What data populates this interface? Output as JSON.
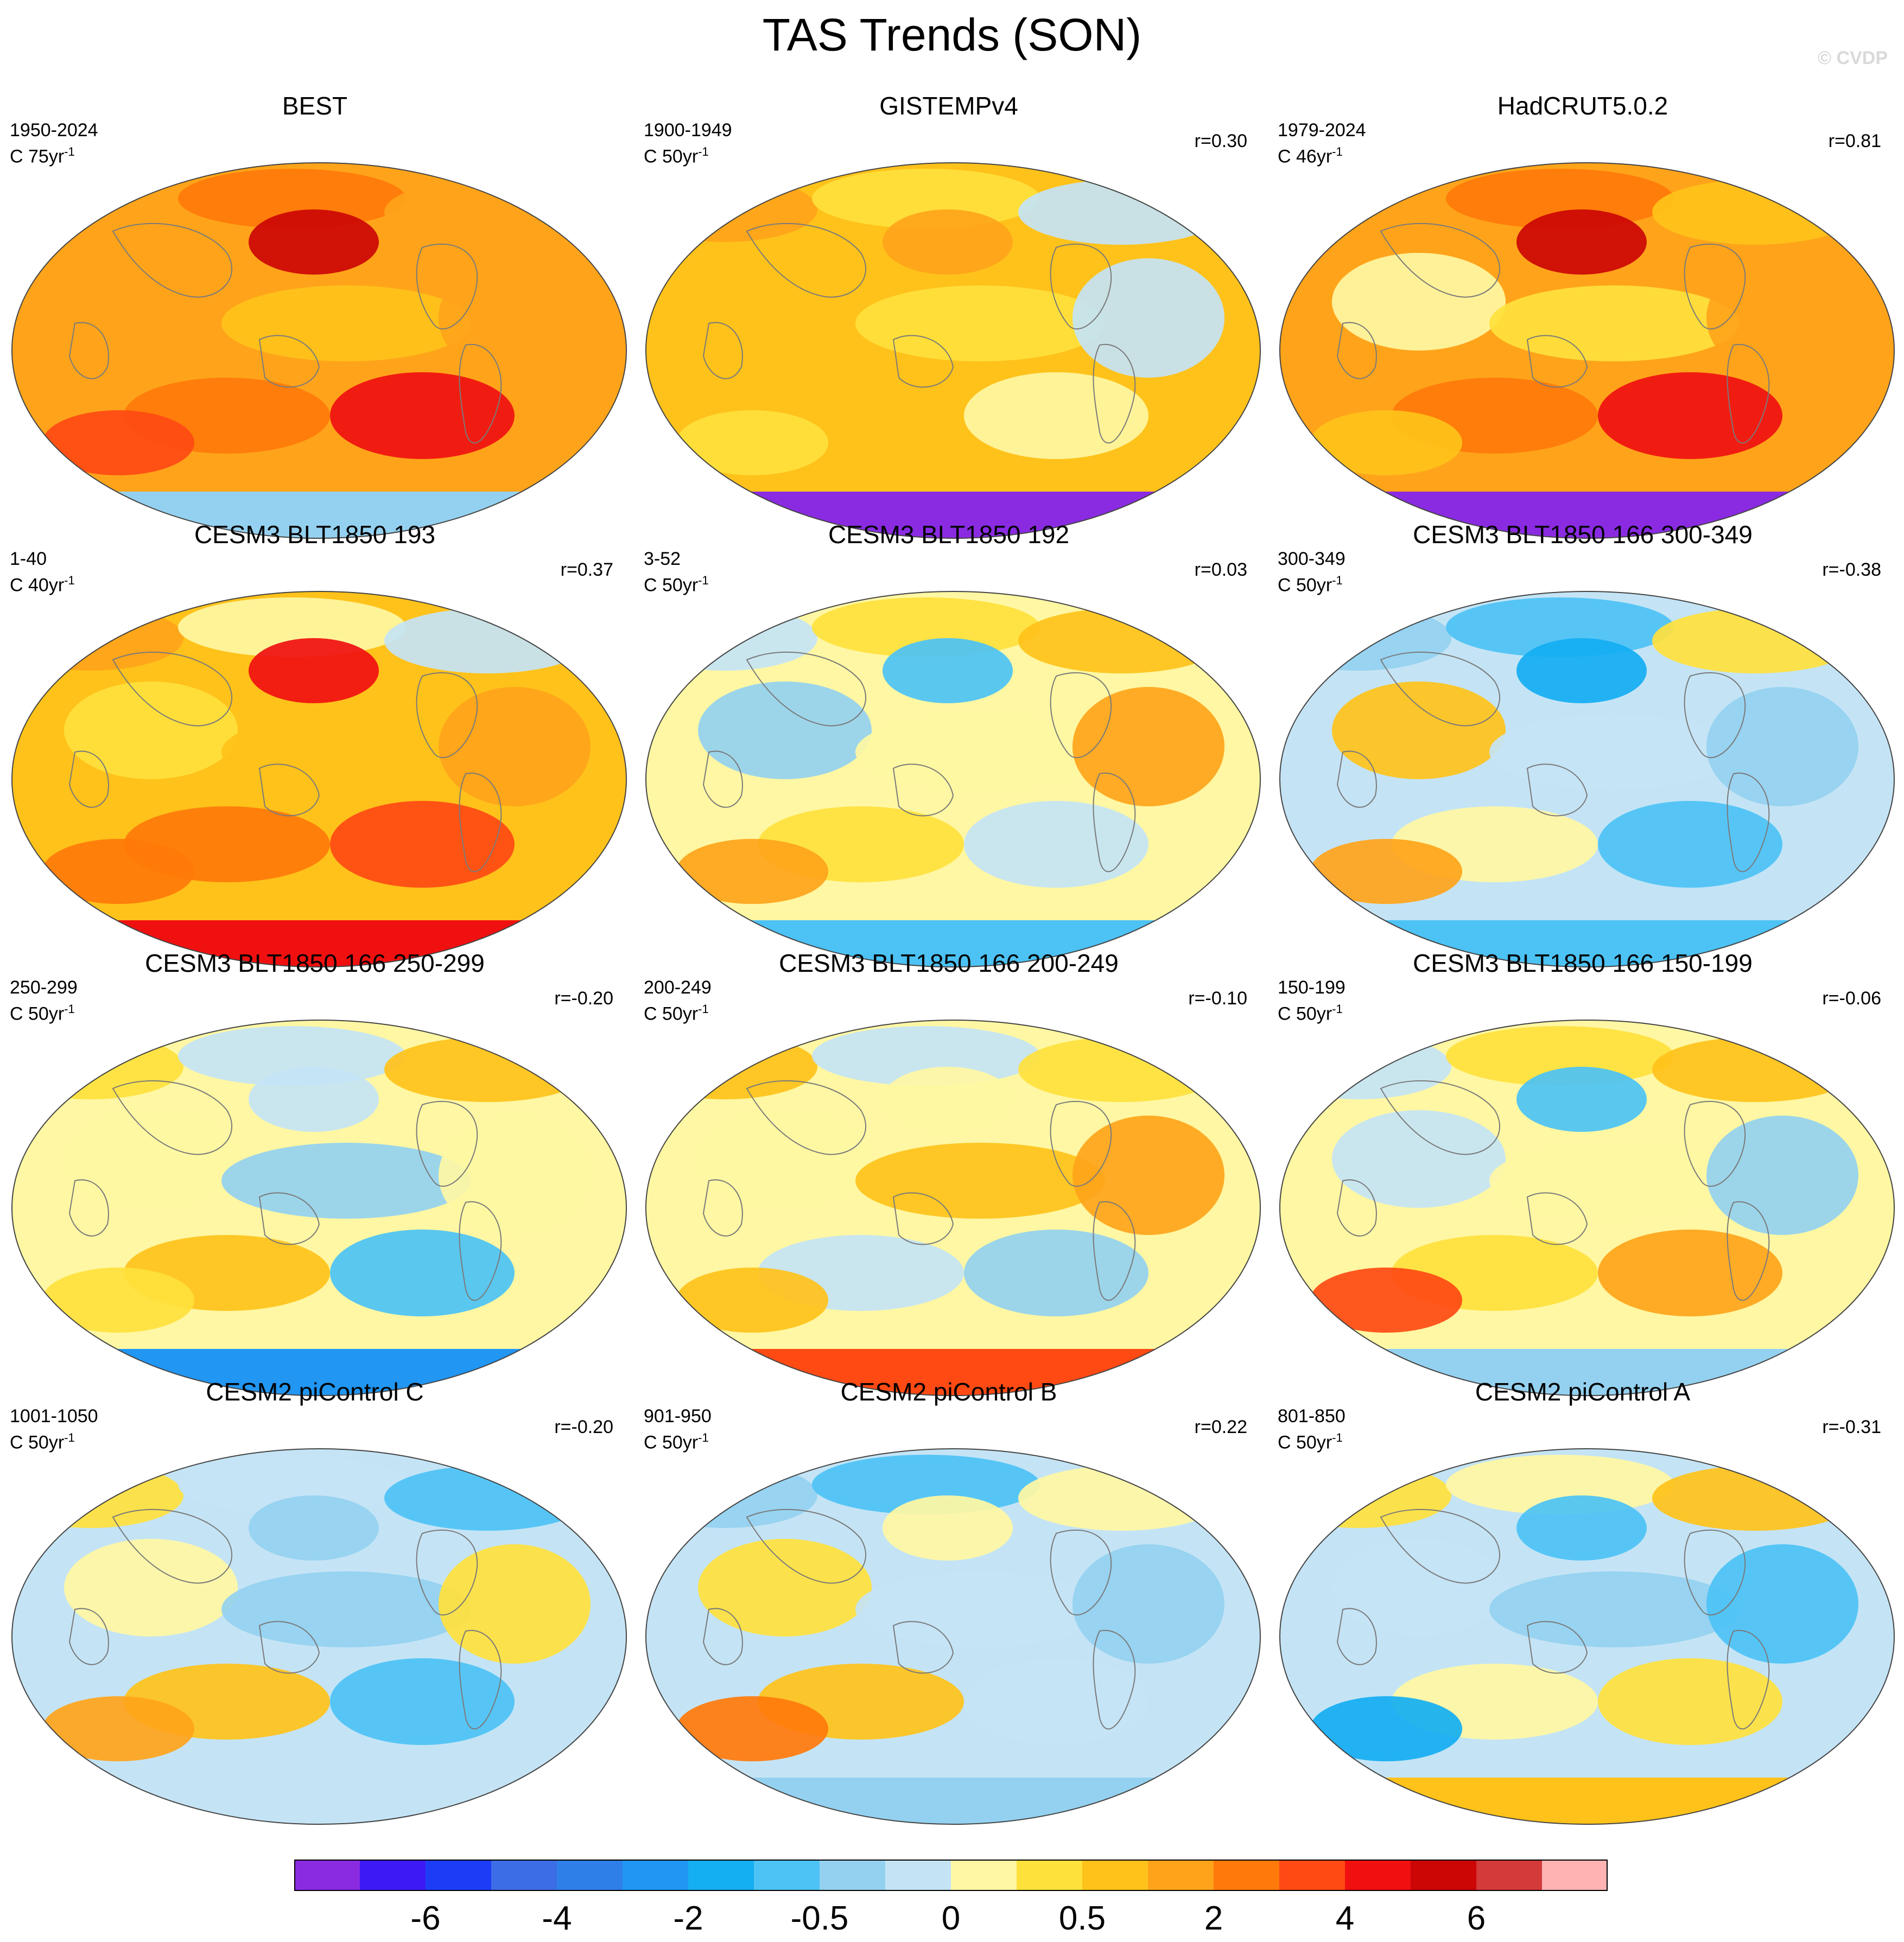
{
  "title": "TAS Trends (SON)",
  "watermark": "© CVDP",
  "colors": {
    "scale": [
      "#8a2be2",
      "#3d1af5",
      "#1c3df5",
      "#3c6de6",
      "#2f7fe8",
      "#2196f3",
      "#14aef2",
      "#4cc2f5",
      "#94d1f0",
      "#c4e4f5",
      "#fff7a3",
      "#ffe13c",
      "#ffc21a",
      "#ffa41a",
      "#ff7a0a",
      "#ff4a14",
      "#f01010",
      "#cc0505",
      "#d33a3a",
      "#ffb3b3"
    ],
    "ocean_default": "#ffa41a",
    "missing": "#ffffff"
  },
  "colorbar": {
    "labels": [
      {
        "text": "-6",
        "boundary": 2
      },
      {
        "text": "-4",
        "boundary": 4
      },
      {
        "text": "-2",
        "boundary": 6
      },
      {
        "text": "-0.5",
        "boundary": 8
      },
      {
        "text": "0",
        "boundary": 10
      },
      {
        "text": "0.5",
        "boundary": 12
      },
      {
        "text": "2",
        "boundary": 14
      },
      {
        "text": "4",
        "boundary": 16
      },
      {
        "text": "6",
        "boundary": 18
      }
    ]
  },
  "panels": [
    {
      "title": "BEST",
      "period": "1950-2024",
      "scale": "C 75yr",
      "r": "",
      "base": 13,
      "pattern": [
        13,
        14,
        13,
        13,
        12,
        13,
        14,
        16,
        17,
        15
      ],
      "south": 8
    },
    {
      "title": "GISTEMPv4",
      "period": "1900-1949",
      "scale": "C 50yr",
      "r": "r=0.30",
      "base": 12,
      "pattern": [
        13,
        11,
        9,
        12,
        11,
        9,
        12,
        10,
        13,
        11
      ],
      "south": 0
    },
    {
      "title": "HadCRUT5.0.2",
      "period": "1979-2024",
      "scale": "C 46yr",
      "r": "r=0.81",
      "base": 13,
      "pattern": [
        13,
        14,
        12,
        10,
        11,
        13,
        14,
        16,
        17,
        12
      ],
      "south": 0
    },
    {
      "title": "CESM3 BLT1850 193",
      "period": "1-40",
      "scale": "C 40yr",
      "r": "r=0.37",
      "base": 12,
      "pattern": [
        13,
        10,
        9,
        11,
        12,
        13,
        14,
        15,
        16,
        14
      ],
      "south": 16
    },
    {
      "title": "CESM3 BLT1850 192",
      "period": "3-52",
      "scale": "C 50yr",
      "r": "r=0.03",
      "base": 10,
      "pattern": [
        9,
        11,
        12,
        8,
        10,
        13,
        11,
        9,
        7,
        13
      ],
      "south": 7
    },
    {
      "title": "CESM3 BLT1850 166 300-349",
      "period": "300-349",
      "scale": "C 50yr",
      "r": "r=-0.38",
      "base": 9,
      "pattern": [
        8,
        7,
        11,
        12,
        9,
        8,
        10,
        7,
        6,
        13
      ],
      "south": 7
    },
    {
      "title": "CESM3 BLT1850 166 250-299",
      "period": "250-299",
      "scale": "C 50yr",
      "r": "r=-0.20",
      "base": 10,
      "pattern": [
        11,
        9,
        12,
        10,
        8,
        10,
        12,
        7,
        9,
        11
      ],
      "south": 5
    },
    {
      "title": "CESM3 BLT1850 166 200-249",
      "period": "200-249",
      "scale": "C 50yr",
      "r": "r=-0.10",
      "base": 10,
      "pattern": [
        12,
        9,
        11,
        10,
        12,
        13,
        9,
        8,
        10,
        12
      ],
      "south": 15
    },
    {
      "title": "CESM3 BLT1850 166 150-199",
      "period": "150-199",
      "scale": "C 50yr",
      "r": "r=-0.06",
      "base": 10,
      "pattern": [
        9,
        11,
        12,
        9,
        10,
        8,
        11,
        13,
        7,
        15
      ],
      "south": 8
    },
    {
      "title": "CESM2 piControl C",
      "period": "1001-1050",
      "scale": "C 50yr",
      "r": "r=-0.20",
      "base": 9,
      "pattern": [
        11,
        9,
        7,
        10,
        8,
        11,
        12,
        7,
        8,
        13
      ],
      "south": 9
    },
    {
      "title": "CESM2 piControl B",
      "period": "901-950",
      "scale": "C 50yr",
      "r": "r=0.22",
      "base": 9,
      "pattern": [
        8,
        7,
        10,
        11,
        9,
        8,
        12,
        9,
        10,
        14
      ],
      "south": 8
    },
    {
      "title": "CESM2 piControl A",
      "period": "801-850",
      "scale": "C 50yr",
      "r": "r=-0.31",
      "base": 9,
      "pattern": [
        11,
        10,
        12,
        9,
        8,
        7,
        10,
        11,
        7,
        6
      ],
      "south": 12
    }
  ]
}
